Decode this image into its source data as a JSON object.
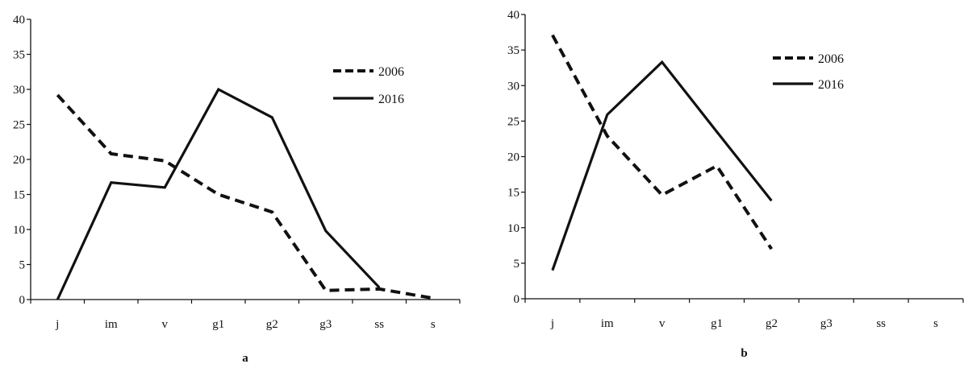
{
  "chart_data": [
    {
      "type": "line",
      "panel_label": "a",
      "categories": [
        "j",
        "im",
        "v",
        "g1",
        "g2",
        "g3",
        "ss",
        "s"
      ],
      "ylim": [
        0,
        40
      ],
      "yticks": [
        0,
        5,
        10,
        15,
        20,
        25,
        30,
        35,
        40
      ],
      "grid": false,
      "legend_placement": "top-right",
      "series": [
        {
          "name": "2006",
          "style": "dashed",
          "values": [
            29.2,
            20.8,
            19.8,
            15,
            12.5,
            1.3,
            1.5,
            0.2
          ]
        },
        {
          "name": "2016",
          "style": "solid",
          "values": [
            0,
            16.7,
            16,
            30,
            26,
            9.8,
            1.7,
            null
          ]
        }
      ]
    },
    {
      "type": "line",
      "panel_label": "b",
      "categories": [
        "j",
        "im",
        "v",
        "g1",
        "g2",
        "g3",
        "ss",
        "s"
      ],
      "ylim": [
        0,
        40
      ],
      "yticks": [
        0,
        5,
        10,
        15,
        20,
        25,
        30,
        35,
        40
      ],
      "grid": false,
      "legend_placement": "top-right",
      "series": [
        {
          "name": "2006",
          "style": "dashed",
          "values": [
            37.1,
            22.9,
            14.6,
            18.7,
            7,
            null,
            null,
            null
          ]
        },
        {
          "name": "2016",
          "style": "solid",
          "values": [
            4,
            25.9,
            33.3,
            23.5,
            13.8,
            null,
            null,
            null
          ]
        }
      ]
    }
  ]
}
